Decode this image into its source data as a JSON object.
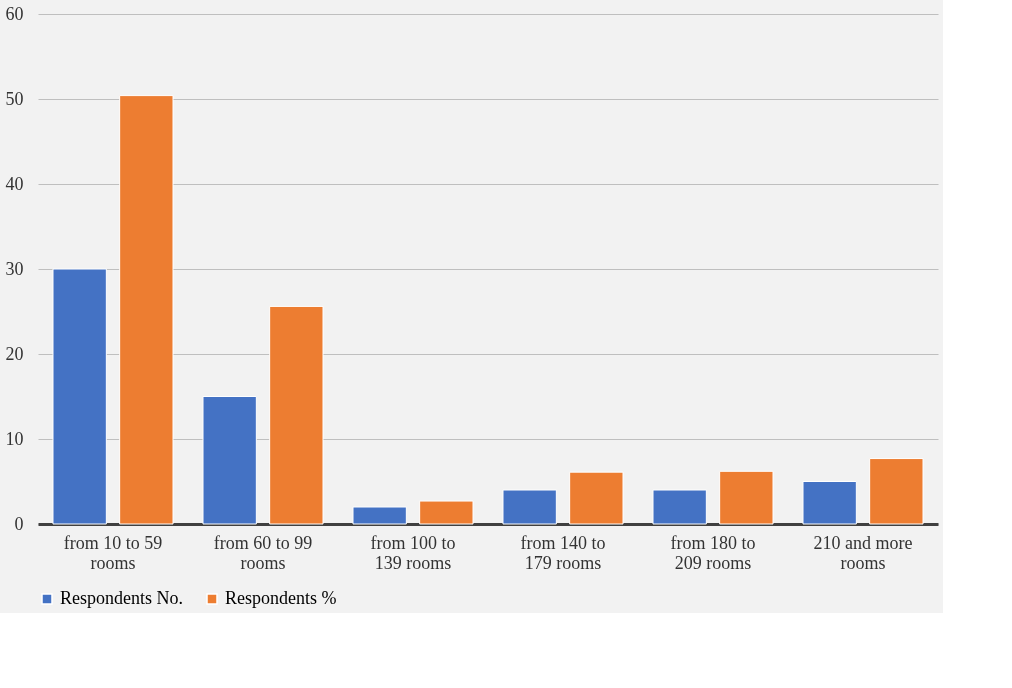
{
  "chart_data": {
    "type": "bar",
    "categories": [
      "from 10 to 59 rooms",
      "from 60 to 99 rooms",
      "from 100 to 139 rooms",
      "from 140 to 179 rooms",
      "from 180 to 209 rooms",
      "210 and more rooms"
    ],
    "series": [
      {
        "name": "Respondents No.",
        "color": "#4472c4",
        "values": [
          30,
          15,
          2,
          4,
          4,
          5
        ]
      },
      {
        "name": "Respondents %",
        "color": "#ed7d31",
        "values": [
          50.4,
          25.6,
          2.7,
          6.1,
          6.2,
          7.7
        ]
      }
    ],
    "ylim": [
      0,
      60
    ],
    "yticks": [
      0,
      10,
      20,
      30,
      40,
      50,
      60
    ],
    "grid": "y",
    "legend": "bottom"
  }
}
